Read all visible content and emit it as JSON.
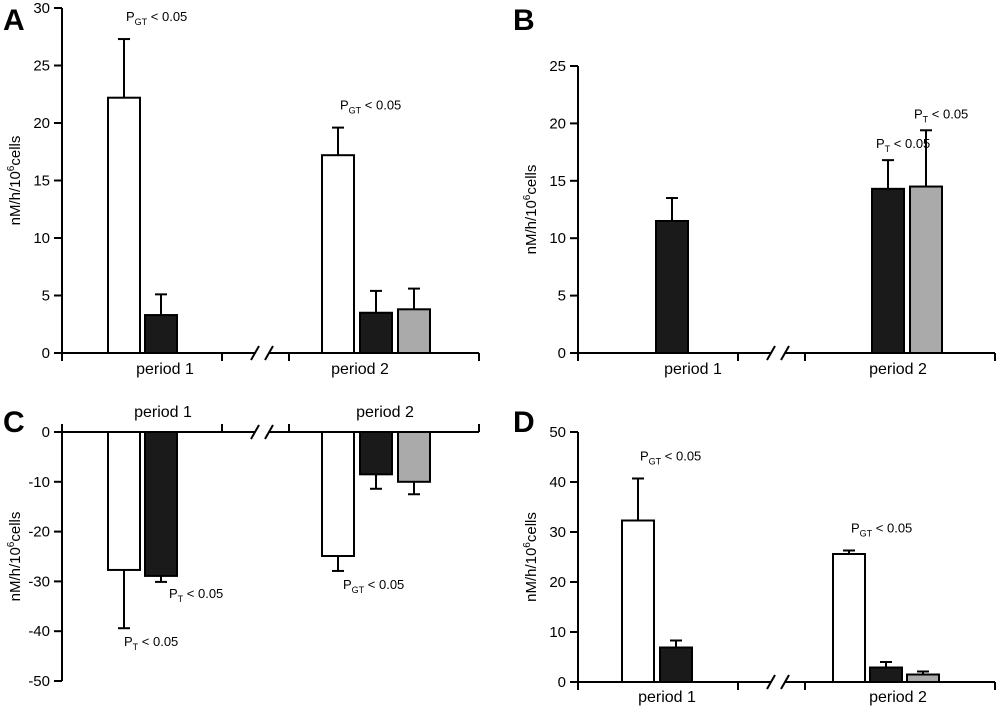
{
  "figure": {
    "colors": {
      "open": "#ffffff",
      "black": "#1a1a1a",
      "gray": "#aaaaaa",
      "outline": "#000000"
    },
    "ylabel_parts": {
      "prefix": "nM/h/10",
      "sup": "6",
      "suffix": "cells"
    }
  },
  "chart_data": [
    {
      "type": "bar",
      "panel": "A",
      "ylim": [
        0,
        30
      ],
      "yticks": [
        0,
        5,
        10,
        15,
        20,
        25,
        30
      ],
      "ylabel": "nM/h/10^6cells",
      "categories": [
        "period 1",
        "period 2"
      ],
      "series": [
        {
          "color": "open",
          "values": [
            22.2,
            17.2
          ],
          "errors": [
            5.1,
            2.4
          ]
        },
        {
          "color": "black",
          "values": [
            3.3,
            3.5
          ],
          "errors": [
            1.8,
            1.9
          ]
        },
        {
          "color": "gray",
          "values": [
            null,
            3.8
          ],
          "errors": [
            null,
            1.8
          ]
        }
      ],
      "annotations": [
        {
          "main": "P",
          "sub": "GT",
          "rest": " < 0.05",
          "series": 0,
          "category": 0
        },
        {
          "main": "P",
          "sub": "GT",
          "rest": " < 0.05",
          "series": 0,
          "category": 1
        }
      ]
    },
    {
      "type": "bar",
      "panel": "B",
      "ylim": [
        0,
        25
      ],
      "yticks": [
        0,
        5,
        10,
        15,
        20,
        25
      ],
      "ylabel": "nM/h/10^6cells",
      "categories": [
        "period 1",
        "period 2"
      ],
      "series": [
        {
          "color": "black",
          "values": [
            11.5,
            14.3
          ],
          "errors": [
            2.0,
            2.5
          ]
        },
        {
          "color": "gray",
          "values": [
            null,
            14.5
          ],
          "errors": [
            null,
            4.9
          ]
        }
      ],
      "annotations": [
        {
          "main": "P",
          "sub": "T",
          "rest": " < 0.05",
          "series": 0,
          "category": 1
        },
        {
          "main": "P",
          "sub": "T",
          "rest": " < 0.05",
          "series": 1,
          "category": 1
        }
      ]
    },
    {
      "type": "bar",
      "panel": "C",
      "ylim": [
        -50,
        0
      ],
      "yticks": [
        0,
        -10,
        -20,
        -30,
        -40,
        -50
      ],
      "ylabel": "nM/h/10^6cells",
      "categories": [
        "period 1",
        "period 2"
      ],
      "series": [
        {
          "color": "open",
          "values": [
            -27.7,
            -24.9
          ],
          "errors": [
            11.7,
            3.0
          ]
        },
        {
          "color": "black",
          "values": [
            -28.9,
            -8.5
          ],
          "errors": [
            1.2,
            2.9
          ]
        },
        {
          "color": "gray",
          "values": [
            null,
            -10.0
          ],
          "errors": [
            null,
            2.5
          ]
        }
      ],
      "annotations": [
        {
          "main": "P",
          "sub": "T",
          "rest": " < 0.05",
          "series": 0,
          "category": 0
        },
        {
          "main": "P",
          "sub": "T",
          "rest": " < 0.05",
          "series": 1,
          "category": 0
        },
        {
          "main": "P",
          "sub": "GT",
          "rest": " < 0.05",
          "series": 0,
          "category": 1
        }
      ]
    },
    {
      "type": "bar",
      "panel": "D",
      "ylim": [
        0,
        50
      ],
      "yticks": [
        0,
        10,
        20,
        30,
        40,
        50
      ],
      "ylabel": "nM/h/10^6cells",
      "categories": [
        "period 1",
        "period 2"
      ],
      "series": [
        {
          "color": "open",
          "values": [
            32.3,
            25.6
          ],
          "errors": [
            8.4,
            0.7
          ]
        },
        {
          "color": "black",
          "values": [
            6.9,
            2.9
          ],
          "errors": [
            1.4,
            1.1
          ]
        },
        {
          "color": "gray",
          "values": [
            null,
            1.5
          ],
          "errors": [
            null,
            0.6
          ]
        }
      ],
      "annotations": [
        {
          "main": "P",
          "sub": "GT",
          "rest": " < 0.05",
          "series": 0,
          "category": 0
        },
        {
          "main": "P",
          "sub": "GT",
          "rest": " < 0.05",
          "series": 0,
          "category": 1
        }
      ]
    }
  ]
}
